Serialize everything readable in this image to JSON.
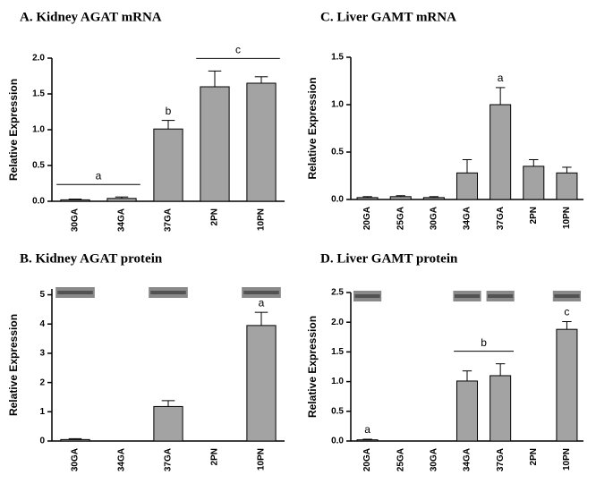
{
  "chart_data": [
    {
      "type": "bar",
      "title": "A.  Kidney AGAT mRNA",
      "y_label": "Relative Expression",
      "categories": [
        "30GA",
        "34GA",
        "37GA",
        "2PN",
        "10PN"
      ],
      "values": [
        0.02,
        0.04,
        1.01,
        1.6,
        1.65
      ],
      "errors": [
        0.01,
        0.02,
        0.12,
        0.22,
        0.09
      ],
      "color": "#a3a3a3",
      "ylim": [
        0,
        2
      ],
      "yticks": [
        {
          "value": 0,
          "label": "0.0"
        },
        0.5,
        {
          "value": 1,
          "label": "1.0"
        },
        1.5,
        {
          "value": 2,
          "label": "2.0"
        }
      ],
      "annotations": [
        {
          "text": "a",
          "categories": [
            "30GA",
            "34GA"
          ]
        },
        {
          "text": "b",
          "categories": [
            "37GA"
          ]
        },
        {
          "text": "c",
          "categories": [
            "2PN",
            "10PN"
          ]
        }
      ]
    },
    {
      "type": "bar",
      "title": "B.  Kidney AGAT protein",
      "y_label": "Relative Expression",
      "categories": [
        "30GA",
        "34GA",
        "37GA",
        "2PN",
        "10PN"
      ],
      "values": [
        0.05,
        null,
        1.18,
        null,
        3.95
      ],
      "errors": [
        0.03,
        null,
        0.2,
        null,
        0.45
      ],
      "color": "#a3a3a3",
      "ylim": [
        0,
        5.2
      ],
      "yticks": [
        0,
        1,
        2,
        3,
        4,
        5
      ],
      "annotations": [
        {
          "text": "a",
          "categories": [
            "10PN"
          ]
        }
      ]
    },
    {
      "type": "bar",
      "title": "C.  Liver GAMT mRNA",
      "y_label": "Relative Expression",
      "categories": [
        "20GA",
        "25GA",
        "30GA",
        "34GA",
        "37GA",
        "2PN",
        "10PN"
      ],
      "values": [
        0.02,
        0.03,
        0.02,
        0.28,
        1.0,
        0.35,
        0.28
      ],
      "errors": [
        0.01,
        0.01,
        0.01,
        0.14,
        0.18,
        0.07,
        0.06
      ],
      "color": "#a3a3a3",
      "ylim": [
        0,
        1.5
      ],
      "yticks": [
        {
          "value": 0,
          "label": "0.0"
        },
        0.5,
        {
          "value": 1,
          "label": "1.0"
        },
        1.5
      ],
      "annotations": [
        {
          "text": "a",
          "categories": [
            "37GA"
          ]
        }
      ]
    },
    {
      "type": "bar",
      "title": "D.  Liver GAMT protein",
      "y_label": "Relative Expression",
      "categories": [
        "20GA",
        "25GA",
        "30GA",
        "34GA",
        "37GA",
        "2PN",
        "10PN"
      ],
      "values": [
        0.02,
        null,
        null,
        1.01,
        1.1,
        null,
        1.88
      ],
      "errors": [
        0.01,
        null,
        null,
        0.17,
        0.2,
        null,
        0.13
      ],
      "color": "#a3a3a3",
      "ylim": [
        0,
        2.5
      ],
      "yticks": [
        {
          "value": 0,
          "label": "0.0"
        },
        0.5,
        {
          "value": 1,
          "label": "1.0"
        },
        1.5,
        {
          "value": 2,
          "label": "2.0"
        },
        2.5
      ],
      "annotations": [
        {
          "text": "a",
          "categories": [
            "20GA"
          ]
        },
        {
          "text": "b",
          "categories": [
            "34GA",
            "37GA"
          ]
        },
        {
          "text": "c",
          "categories": [
            "10PN"
          ]
        }
      ]
    }
  ]
}
